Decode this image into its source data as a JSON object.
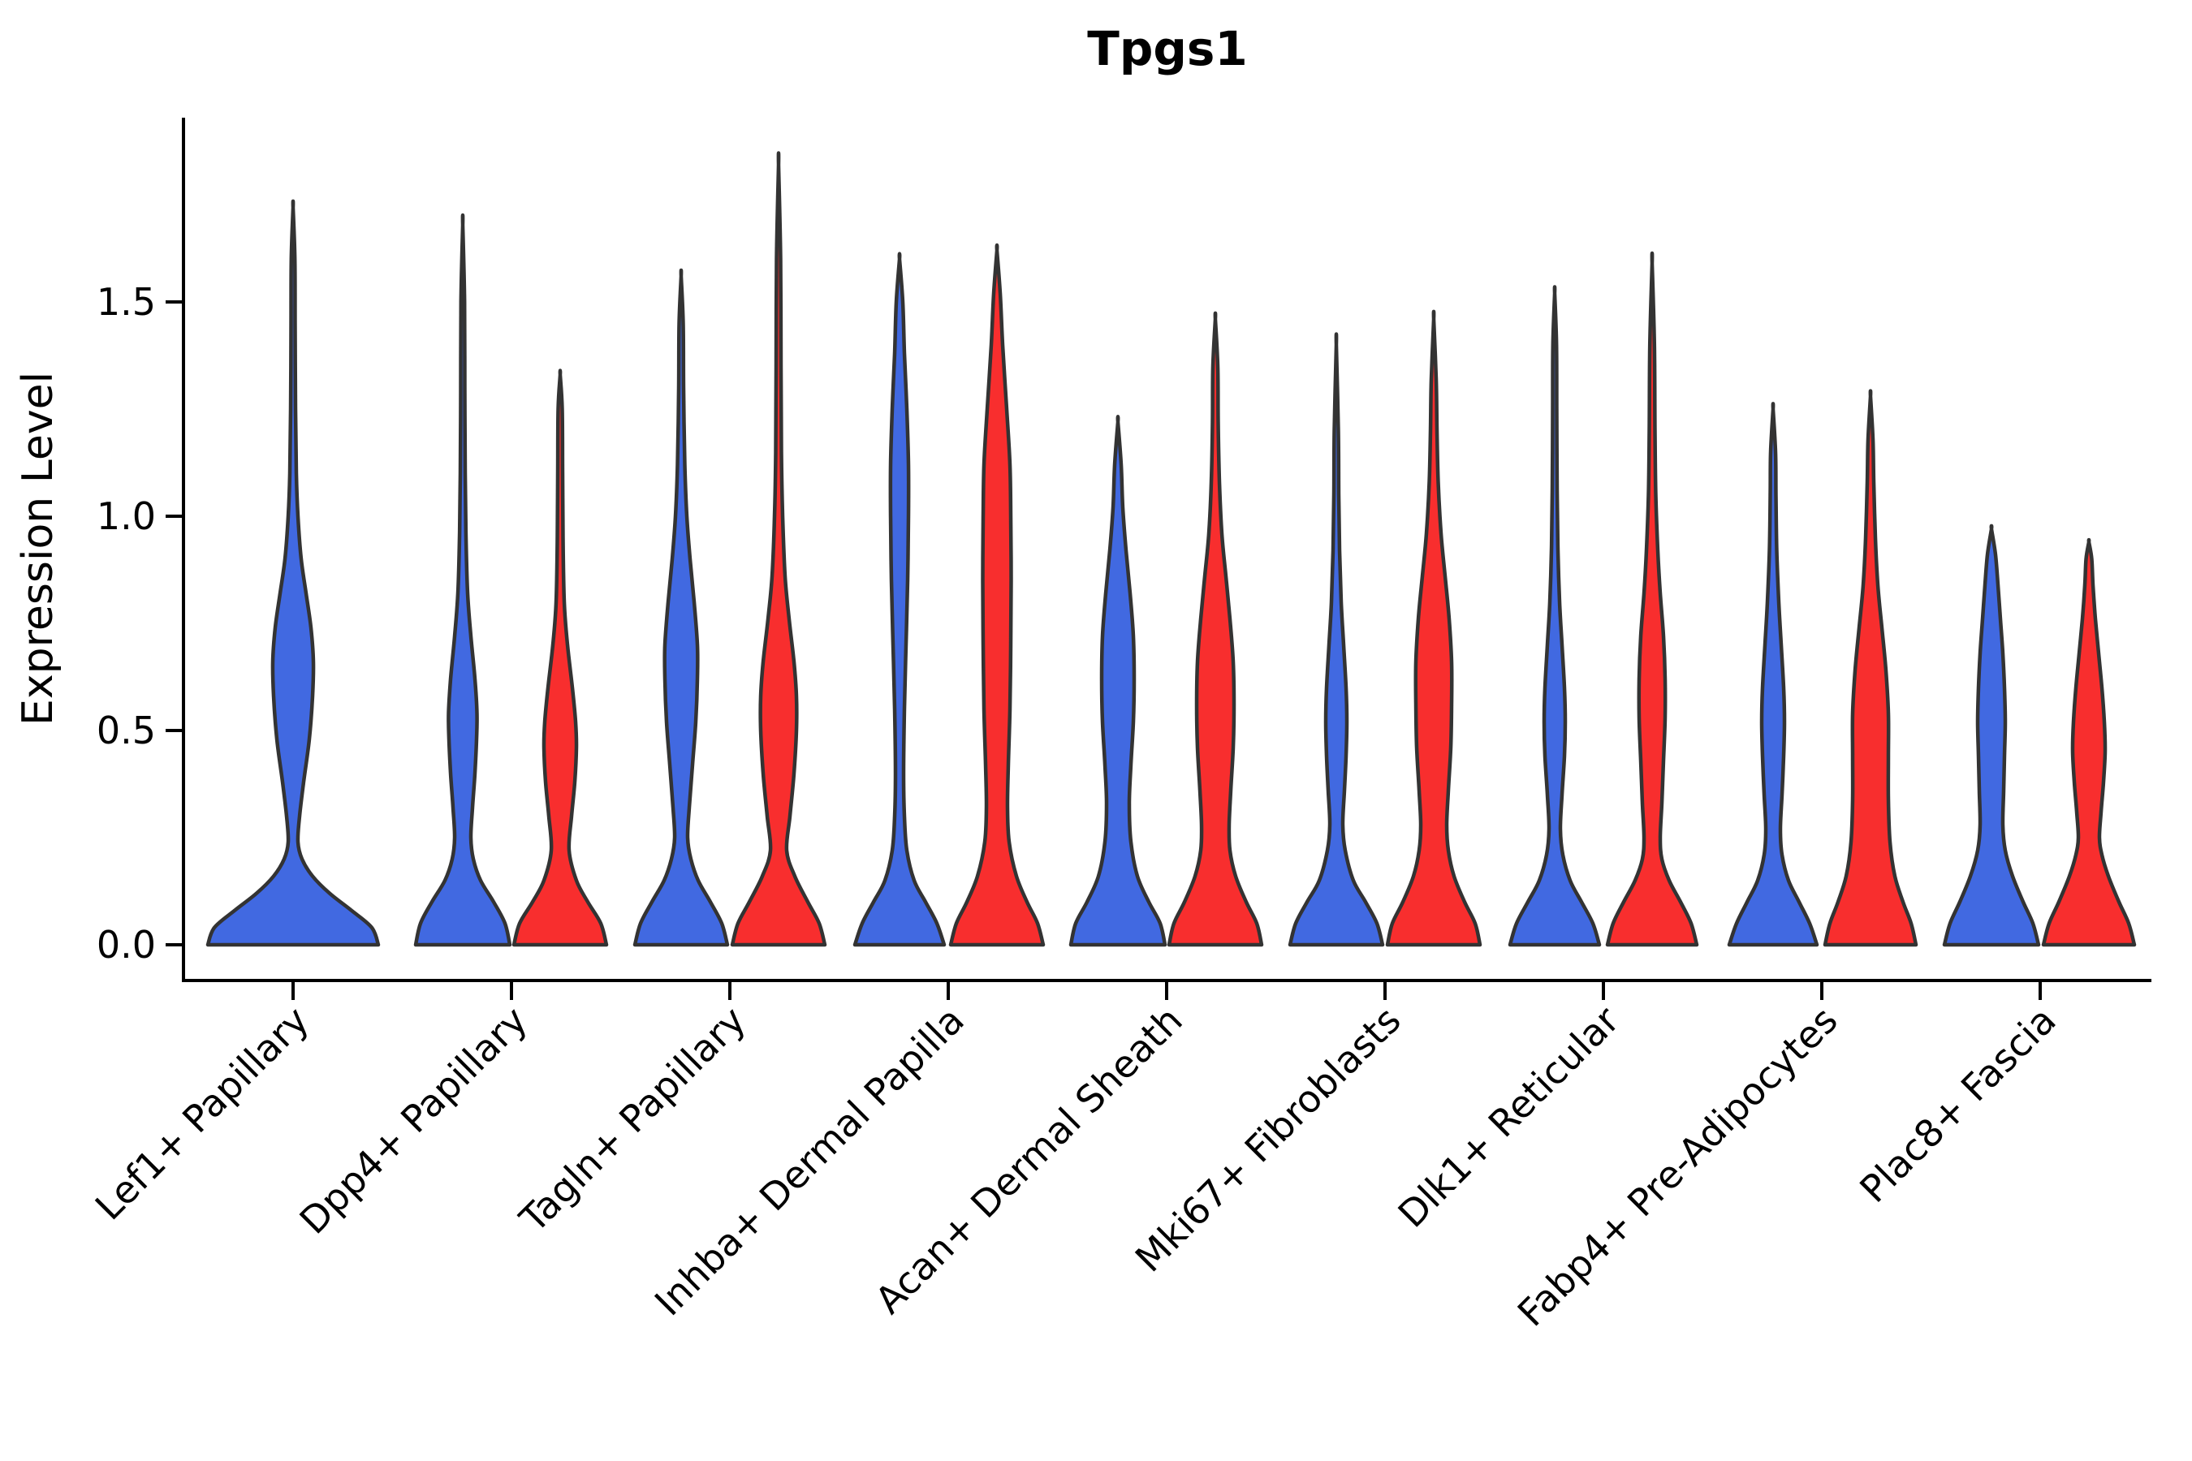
{
  "chart_data": {
    "type": "violin",
    "title": "Tpgs1",
    "ylabel": "Expression Level",
    "xlabel": "",
    "ylim": [
      -0.08,
      1.93
    ],
    "yticks": [
      0.0,
      0.5,
      1.0,
      1.5
    ],
    "ytick_labels": [
      "0.0",
      "0.5",
      "1.0",
      "1.5"
    ],
    "grid": false,
    "legend": "none",
    "series": [
      {
        "name": "group-blue",
        "color": "#4169E1"
      },
      {
        "name": "group-red",
        "color": "#F82E2E"
      }
    ],
    "outline_color": "#333333",
    "categories": [
      "Lef1+ Papillary",
      "Dpp4+ Papillary",
      "Tagln+ Papillary",
      "Inhba+ Dermal Papilla",
      "Acan+ Dermal Sheath",
      "Mki67+ Fibroblasts",
      "Dlk1+ Reticular",
      "Fabp4+ Pre-Adipocytes",
      "Plac8+ Fascia"
    ],
    "violins": [
      {
        "category": "Lef1+ Papillary",
        "series": "group-blue",
        "side": "center",
        "tip": 1.72,
        "profile": [
          [
            0.0,
            105
          ],
          [
            0.04,
            97
          ],
          [
            0.08,
            72
          ],
          [
            0.12,
            45
          ],
          [
            0.16,
            24
          ],
          [
            0.2,
            11
          ],
          [
            0.24,
            6
          ],
          [
            0.3,
            8
          ],
          [
            0.38,
            13
          ],
          [
            0.48,
            20
          ],
          [
            0.58,
            24
          ],
          [
            0.66,
            25
          ],
          [
            0.74,
            22
          ],
          [
            0.82,
            16
          ],
          [
            0.9,
            10
          ],
          [
            1.0,
            6
          ],
          [
            1.1,
            4
          ],
          [
            1.25,
            3
          ],
          [
            1.45,
            2.5
          ],
          [
            1.6,
            2.2
          ],
          [
            1.72,
            0
          ]
        ]
      },
      {
        "category": "Dpp4+ Papillary",
        "series": "group-blue",
        "side": "left",
        "tip": 1.68,
        "profile": [
          [
            0.0,
            58
          ],
          [
            0.05,
            52
          ],
          [
            0.1,
            38
          ],
          [
            0.15,
            22
          ],
          [
            0.2,
            13
          ],
          [
            0.25,
            10
          ],
          [
            0.32,
            12
          ],
          [
            0.4,
            15
          ],
          [
            0.48,
            17
          ],
          [
            0.54,
            17.5
          ],
          [
            0.62,
            15
          ],
          [
            0.72,
            10
          ],
          [
            0.82,
            6
          ],
          [
            0.95,
            4
          ],
          [
            1.1,
            3
          ],
          [
            1.3,
            2.5
          ],
          [
            1.5,
            2.2
          ],
          [
            1.68,
            0
          ]
        ]
      },
      {
        "category": "Dpp4+ Papillary",
        "series": "group-red",
        "side": "right",
        "tip": 1.33,
        "profile": [
          [
            0.0,
            57
          ],
          [
            0.05,
            50
          ],
          [
            0.1,
            34
          ],
          [
            0.15,
            20
          ],
          [
            0.22,
            11
          ],
          [
            0.3,
            14
          ],
          [
            0.38,
            18
          ],
          [
            0.46,
            20
          ],
          [
            0.52,
            19
          ],
          [
            0.6,
            15
          ],
          [
            0.7,
            9
          ],
          [
            0.8,
            5
          ],
          [
            0.95,
            3.5
          ],
          [
            1.1,
            3
          ],
          [
            1.25,
            2.5
          ],
          [
            1.33,
            0
          ]
        ]
      },
      {
        "category": "Tagln+ Papillary",
        "series": "group-blue",
        "side": "left",
        "tip": 1.56,
        "profile": [
          [
            0.0,
            57
          ],
          [
            0.05,
            50
          ],
          [
            0.1,
            36
          ],
          [
            0.15,
            21
          ],
          [
            0.2,
            12
          ],
          [
            0.25,
            8
          ],
          [
            0.32,
            10
          ],
          [
            0.42,
            14
          ],
          [
            0.52,
            18
          ],
          [
            0.62,
            20
          ],
          [
            0.7,
            20
          ],
          [
            0.8,
            16
          ],
          [
            0.9,
            11
          ],
          [
            1.0,
            7
          ],
          [
            1.12,
            4.5
          ],
          [
            1.3,
            3
          ],
          [
            1.45,
            2.5
          ],
          [
            1.56,
            0
          ]
        ]
      },
      {
        "category": "Tagln+ Papillary",
        "series": "group-red",
        "side": "right",
        "tip": 1.82,
        "profile": [
          [
            0.0,
            57
          ],
          [
            0.05,
            50
          ],
          [
            0.1,
            36
          ],
          [
            0.16,
            20
          ],
          [
            0.22,
            10
          ],
          [
            0.3,
            14
          ],
          [
            0.4,
            19
          ],
          [
            0.5,
            22
          ],
          [
            0.58,
            22
          ],
          [
            0.66,
            19
          ],
          [
            0.76,
            13
          ],
          [
            0.86,
            8
          ],
          [
            1.0,
            5
          ],
          [
            1.15,
            3.5
          ],
          [
            1.35,
            3
          ],
          [
            1.6,
            2.5
          ],
          [
            1.82,
            0
          ]
        ]
      },
      {
        "category": "Inhba+ Dermal Papilla",
        "series": "group-blue",
        "side": "left",
        "tip": 1.6,
        "profile": [
          [
            0.0,
            55
          ],
          [
            0.05,
            46
          ],
          [
            0.1,
            32
          ],
          [
            0.15,
            18
          ],
          [
            0.22,
            9
          ],
          [
            0.3,
            6
          ],
          [
            0.4,
            5
          ],
          [
            0.55,
            6
          ],
          [
            0.7,
            8
          ],
          [
            0.85,
            10
          ],
          [
            1.0,
            11
          ],
          [
            1.12,
            11
          ],
          [
            1.25,
            9
          ],
          [
            1.38,
            6
          ],
          [
            1.5,
            4
          ],
          [
            1.6,
            0
          ]
        ]
      },
      {
        "category": "Inhba+ Dermal Papilla",
        "series": "group-red",
        "side": "right",
        "tip": 1.62,
        "profile": [
          [
            0.0,
            57
          ],
          [
            0.05,
            50
          ],
          [
            0.1,
            37
          ],
          [
            0.16,
            24
          ],
          [
            0.24,
            15
          ],
          [
            0.32,
            13
          ],
          [
            0.42,
            14
          ],
          [
            0.55,
            16
          ],
          [
            0.7,
            17
          ],
          [
            0.85,
            17.5
          ],
          [
            1.0,
            17
          ],
          [
            1.12,
            16
          ],
          [
            1.25,
            12
          ],
          [
            1.4,
            7
          ],
          [
            1.52,
            4
          ],
          [
            1.62,
            0
          ]
        ]
      },
      {
        "category": "Acan+ Dermal Sheath",
        "series": "group-blue",
        "side": "left",
        "tip": 1.22,
        "profile": [
          [
            0.0,
            58
          ],
          [
            0.05,
            52
          ],
          [
            0.1,
            38
          ],
          [
            0.16,
            24
          ],
          [
            0.24,
            16
          ],
          [
            0.33,
            14
          ],
          [
            0.42,
            16
          ],
          [
            0.52,
            19
          ],
          [
            0.62,
            20
          ],
          [
            0.72,
            19
          ],
          [
            0.82,
            15
          ],
          [
            0.92,
            10
          ],
          [
            1.02,
            6
          ],
          [
            1.12,
            4
          ],
          [
            1.22,
            0
          ]
        ]
      },
      {
        "category": "Acan+ Dermal Sheath",
        "series": "group-red",
        "side": "right",
        "tip": 1.46,
        "profile": [
          [
            0.0,
            57
          ],
          [
            0.05,
            51
          ],
          [
            0.1,
            38
          ],
          [
            0.16,
            25
          ],
          [
            0.22,
            18
          ],
          [
            0.28,
            17
          ],
          [
            0.36,
            19
          ],
          [
            0.46,
            22
          ],
          [
            0.56,
            23
          ],
          [
            0.66,
            22
          ],
          [
            0.76,
            18
          ],
          [
            0.86,
            13
          ],
          [
            0.96,
            8
          ],
          [
            1.08,
            5
          ],
          [
            1.22,
            3.5
          ],
          [
            1.35,
            3
          ],
          [
            1.46,
            0
          ]
        ]
      },
      {
        "category": "Mki67+ Fibroblasts",
        "series": "group-blue",
        "side": "left",
        "tip": 1.4,
        "profile": [
          [
            0.0,
            57
          ],
          [
            0.05,
            50
          ],
          [
            0.1,
            36
          ],
          [
            0.15,
            21
          ],
          [
            0.22,
            11
          ],
          [
            0.28,
            8
          ],
          [
            0.36,
            10
          ],
          [
            0.44,
            12
          ],
          [
            0.52,
            13
          ],
          [
            0.6,
            12
          ],
          [
            0.7,
            9
          ],
          [
            0.8,
            6
          ],
          [
            0.92,
            4
          ],
          [
            1.05,
            3
          ],
          [
            1.2,
            2.5
          ],
          [
            1.4,
            0
          ]
        ]
      },
      {
        "category": "Mki67+ Fibroblasts",
        "series": "group-red",
        "side": "right",
        "tip": 1.46,
        "profile": [
          [
            0.0,
            57
          ],
          [
            0.05,
            51
          ],
          [
            0.1,
            38
          ],
          [
            0.16,
            25
          ],
          [
            0.22,
            18
          ],
          [
            0.28,
            16
          ],
          [
            0.36,
            18
          ],
          [
            0.46,
            21
          ],
          [
            0.56,
            22
          ],
          [
            0.66,
            22
          ],
          [
            0.76,
            19
          ],
          [
            0.86,
            14
          ],
          [
            0.96,
            9
          ],
          [
            1.08,
            5.5
          ],
          [
            1.2,
            4
          ],
          [
            1.32,
            3
          ],
          [
            1.46,
            0
          ]
        ]
      },
      {
        "category": "Dlk1+ Reticular",
        "series": "group-blue",
        "side": "left",
        "tip": 1.52,
        "profile": [
          [
            0.0,
            55
          ],
          [
            0.05,
            47
          ],
          [
            0.1,
            33
          ],
          [
            0.15,
            19
          ],
          [
            0.21,
            10
          ],
          [
            0.27,
            7
          ],
          [
            0.35,
            9
          ],
          [
            0.44,
            12
          ],
          [
            0.52,
            13
          ],
          [
            0.6,
            12
          ],
          [
            0.7,
            9
          ],
          [
            0.8,
            6
          ],
          [
            0.92,
            4
          ],
          [
            1.06,
            3
          ],
          [
            1.25,
            2.5
          ],
          [
            1.4,
            2.2
          ],
          [
            1.52,
            0
          ]
        ]
      },
      {
        "category": "Dlk1+ Reticular",
        "series": "group-red",
        "side": "right",
        "tip": 1.59,
        "profile": [
          [
            0.0,
            55
          ],
          [
            0.05,
            48
          ],
          [
            0.1,
            35
          ],
          [
            0.15,
            21
          ],
          [
            0.2,
            12
          ],
          [
            0.25,
            10
          ],
          [
            0.33,
            12
          ],
          [
            0.43,
            14
          ],
          [
            0.53,
            16
          ],
          [
            0.62,
            16
          ],
          [
            0.72,
            14
          ],
          [
            0.82,
            10
          ],
          [
            0.92,
            7
          ],
          [
            1.05,
            4.5
          ],
          [
            1.2,
            3.5
          ],
          [
            1.4,
            2.8
          ],
          [
            1.59,
            0
          ]
        ]
      },
      {
        "category": "Fabp4+ Pre-Adipocytes",
        "series": "group-blue",
        "side": "left",
        "tip": 1.25,
        "profile": [
          [
            0.0,
            54
          ],
          [
            0.05,
            45
          ],
          [
            0.1,
            32
          ],
          [
            0.15,
            19
          ],
          [
            0.21,
            11
          ],
          [
            0.27,
            9
          ],
          [
            0.35,
            11
          ],
          [
            0.44,
            13
          ],
          [
            0.52,
            14
          ],
          [
            0.6,
            13
          ],
          [
            0.7,
            10
          ],
          [
            0.8,
            7
          ],
          [
            0.92,
            4.5
          ],
          [
            1.05,
            3.5
          ],
          [
            1.15,
            3
          ],
          [
            1.25,
            0
          ]
        ]
      },
      {
        "category": "Fabp4+ Pre-Adipocytes",
        "series": "group-red",
        "side": "right",
        "tip": 1.28,
        "profile": [
          [
            0.0,
            56
          ],
          [
            0.05,
            50
          ],
          [
            0.1,
            40
          ],
          [
            0.16,
            30
          ],
          [
            0.24,
            24
          ],
          [
            0.34,
            22
          ],
          [
            0.44,
            22
          ],
          [
            0.54,
            22
          ],
          [
            0.64,
            19
          ],
          [
            0.74,
            14
          ],
          [
            0.84,
            9
          ],
          [
            0.95,
            6
          ],
          [
            1.08,
            4
          ],
          [
            1.18,
            3
          ],
          [
            1.28,
            0
          ]
        ]
      },
      {
        "category": "Plac8+ Fascia",
        "series": "group-blue",
        "side": "left",
        "tip": 0.97,
        "profile": [
          [
            0.0,
            58
          ],
          [
            0.05,
            51
          ],
          [
            0.1,
            39
          ],
          [
            0.16,
            26
          ],
          [
            0.22,
            17
          ],
          [
            0.28,
            14
          ],
          [
            0.36,
            15
          ],
          [
            0.44,
            16
          ],
          [
            0.52,
            17
          ],
          [
            0.6,
            16
          ],
          [
            0.68,
            14
          ],
          [
            0.76,
            11
          ],
          [
            0.84,
            8
          ],
          [
            0.91,
            5
          ],
          [
            0.97,
            0
          ]
        ]
      },
      {
        "category": "Plac8+ Fascia",
        "series": "group-red",
        "side": "right",
        "tip": 0.94,
        "profile": [
          [
            0.0,
            56
          ],
          [
            0.05,
            49
          ],
          [
            0.1,
            37
          ],
          [
            0.16,
            24
          ],
          [
            0.21,
            16
          ],
          [
            0.25,
            13
          ],
          [
            0.31,
            15
          ],
          [
            0.38,
            18
          ],
          [
            0.45,
            20
          ],
          [
            0.52,
            19
          ],
          [
            0.6,
            16
          ],
          [
            0.68,
            12
          ],
          [
            0.76,
            8
          ],
          [
            0.84,
            5
          ],
          [
            0.9,
            3.5
          ],
          [
            0.94,
            0
          ]
        ]
      }
    ]
  }
}
